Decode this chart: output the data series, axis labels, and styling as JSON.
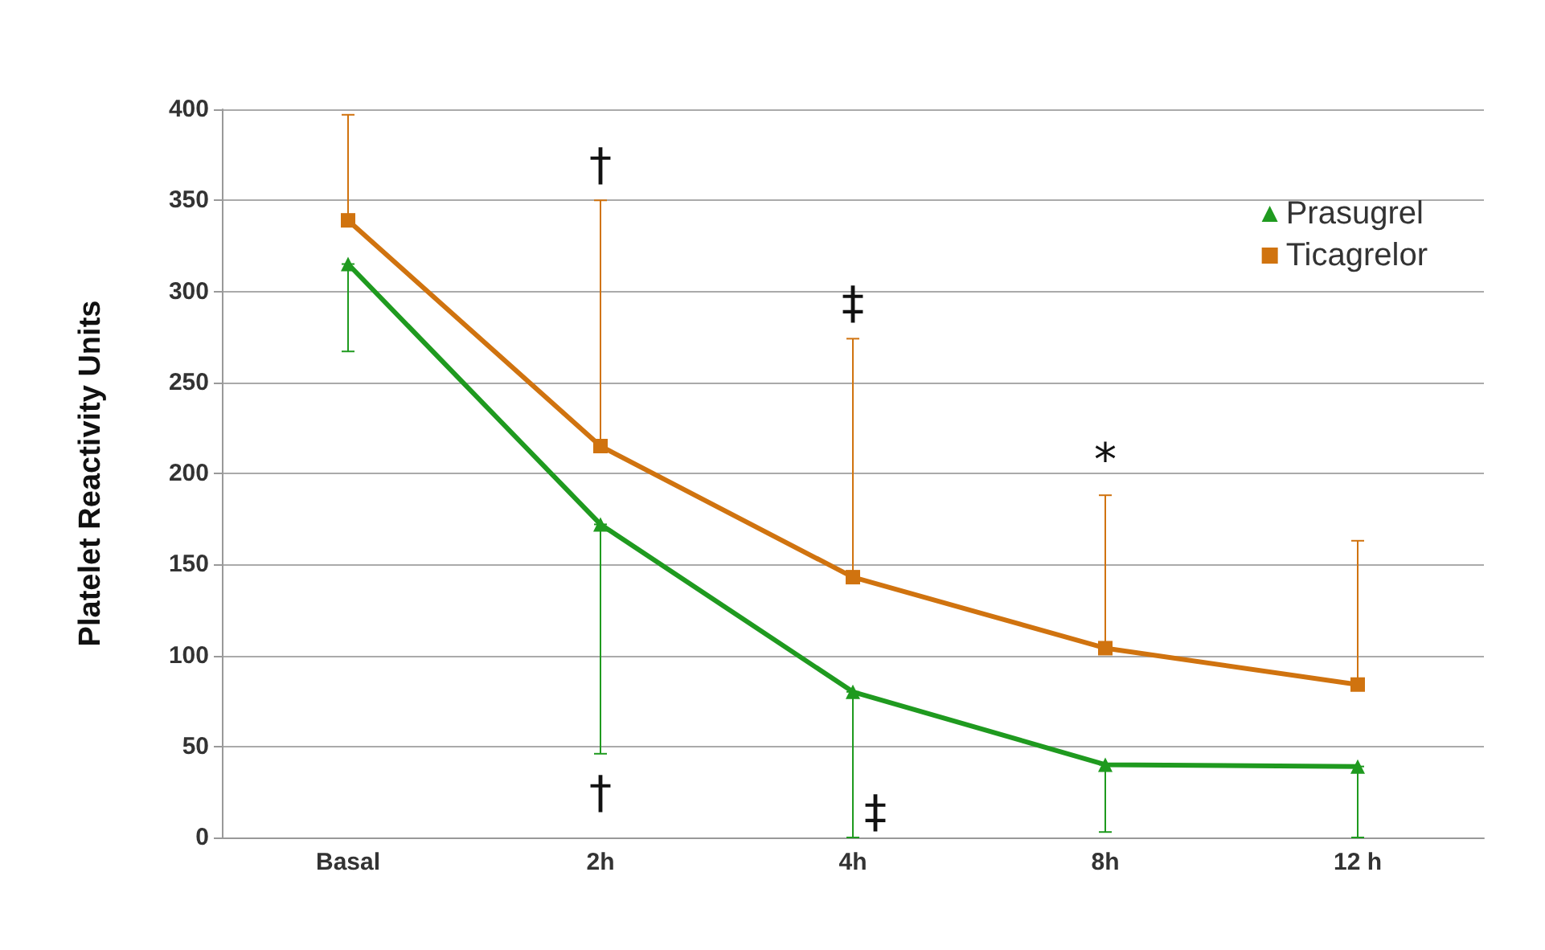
{
  "chart_data": {
    "type": "line",
    "ylabel": "Platelet Reactivity Units",
    "categories": [
      "Basal",
      "2h",
      "4h",
      "8h",
      "12 h"
    ],
    "series": [
      {
        "name": "Prasugrel",
        "color": "#1f9a1f",
        "marker": "triangle",
        "values": [
          315,
          172,
          80,
          40,
          39
        ],
        "errors": [
          [
            267,
            315
          ],
          [
            46,
            172
          ],
          [
            0,
            80
          ],
          [
            3,
            40
          ],
          [
            0,
            39
          ]
        ]
      },
      {
        "name": "Ticagrelor",
        "color": "#d0730f",
        "marker": "square",
        "values": [
          339,
          215,
          143,
          104,
          84
        ],
        "errors": [
          [
            339,
            397
          ],
          [
            215,
            350
          ],
          [
            143,
            274
          ],
          [
            104,
            188
          ],
          [
            84,
            163
          ]
        ]
      }
    ],
    "ylim": [
      0,
      400
    ],
    "yticks": [
      0,
      50,
      100,
      150,
      200,
      250,
      300,
      350,
      400
    ],
    "grid": "y",
    "legend": "top right",
    "annotations": [
      {
        "text": "†",
        "x": "2h",
        "y": 350
      },
      {
        "text": "‡",
        "x": "4h",
        "y": 274
      },
      {
        "text": "*",
        "x": "8h",
        "y": 188
      },
      {
        "text": "†",
        "x": "2h",
        "y": 46
      },
      {
        "text": "‡",
        "x": "4h",
        "y": 0
      }
    ]
  }
}
